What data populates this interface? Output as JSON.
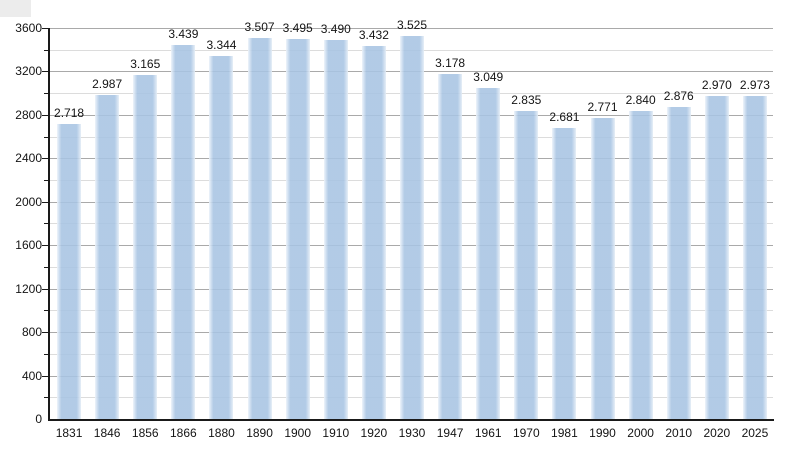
{
  "page": {
    "background": "#ffffff",
    "corner_artifact_color": "#ececec"
  },
  "chart_data": {
    "type": "bar",
    "title": "",
    "xlabel": "",
    "ylabel": "",
    "categories": [
      "1831",
      "1846",
      "1856",
      "1866",
      "1880",
      "1890",
      "1900",
      "1910",
      "1920",
      "1930",
      "1947",
      "1961",
      "1970",
      "1981",
      "1990",
      "2000",
      "2010",
      "2020",
      "2025"
    ],
    "values": [
      2718,
      2987,
      3165,
      3439,
      3344,
      3507,
      3495,
      3490,
      3432,
      3525,
      3178,
      3049,
      2835,
      2681,
      2771,
      2840,
      2876,
      2970,
      2973
    ],
    "bar_labels": [
      "2.718",
      "2.987",
      "3.165",
      "3.439",
      "3.344",
      "3.507",
      "3.495",
      "3.490",
      "3.432",
      "3.525",
      "3.178",
      "3.049",
      "2.835",
      "2.681",
      "2.771",
      "2.840",
      "2.876",
      "2.970",
      "2.973"
    ],
    "ylim": [
      0,
      3600
    ],
    "y_major_step": 400,
    "y_minor_step": 200,
    "y_tick_labels": [
      "0",
      "400",
      "800",
      "1200",
      "1600",
      "2000",
      "2400",
      "2800",
      "3200",
      "3600"
    ],
    "grid": true,
    "legend": "none",
    "colors": {
      "bar_fill": "#b2cbe6",
      "bar_fill_rgba": "rgba(168,196,227,0.88)",
      "bar_edge_left_rgba": "rgba(236,243,250,0.92)",
      "bar_edge_right_rgba": "rgba(228,237,246,0.90)",
      "grid_major": "#a9a9a9",
      "grid_minor": "#dcdcdc",
      "axis": "#1a1a1a",
      "text": "#141414"
    }
  }
}
